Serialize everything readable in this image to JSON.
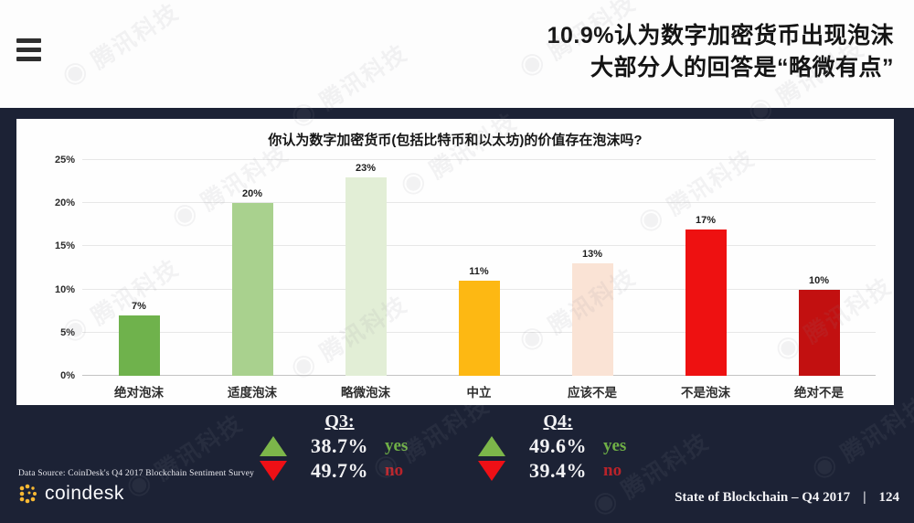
{
  "header": {
    "title_line1": "10.9%认为数字加密货币出现泡沫",
    "title_line2": "大部分人的回答是“略微有点”"
  },
  "chart_data": {
    "type": "bar",
    "title": "你认为数字加密货币(包括比特币和以太坊)的价值存在泡沫吗?",
    "categories": [
      "绝对泡沫",
      "适度泡沫",
      "略微泡沫",
      "中立",
      "应该不是",
      "不是泡沫",
      "绝对不是"
    ],
    "values": [
      7,
      20,
      23,
      11,
      13,
      17,
      10
    ],
    "value_labels": [
      "7%",
      "20%",
      "23%",
      "11%",
      "13%",
      "17%",
      "10%"
    ],
    "colors": [
      "#6fb24c",
      "#a9d18e",
      "#e2eed6",
      "#fdb813",
      "#fae3d5",
      "#ee1111",
      "#c21010"
    ],
    "ylim": [
      0,
      25
    ],
    "yticks": [
      "0%",
      "5%",
      "10%",
      "15%",
      "20%",
      "25%"
    ],
    "grid": "horizontal",
    "legend": "none",
    "xlabel": "",
    "ylabel": ""
  },
  "stats": {
    "q3": {
      "label": "Q3:",
      "yes_value": "38.7%",
      "yes_word": "yes",
      "no_value": "49.7%",
      "no_word": "no"
    },
    "q4": {
      "label": "Q4:",
      "yes_value": "49.6%",
      "yes_word": "yes",
      "no_value": "39.4%",
      "no_word": "no"
    }
  },
  "footer": {
    "data_source": "Data Source: CoinDesk's Q4 2017 Blockchain Sentiment Survey",
    "brand": "coindesk",
    "report_title": "State of Blockchain – Q4 2017",
    "divider": "|",
    "page_number": "124"
  },
  "watermark": {
    "text": "◉ 腾讯科技"
  },
  "colors": {
    "background_dark": "#1c2235",
    "card_background": "#fefefe",
    "triangle_up_green": "#7cb64a",
    "triangle_down_red": "#ee1016",
    "yes_green": "#6faf46",
    "no_red": "#b9232a",
    "coindesk_yellow": "#f9b933"
  }
}
